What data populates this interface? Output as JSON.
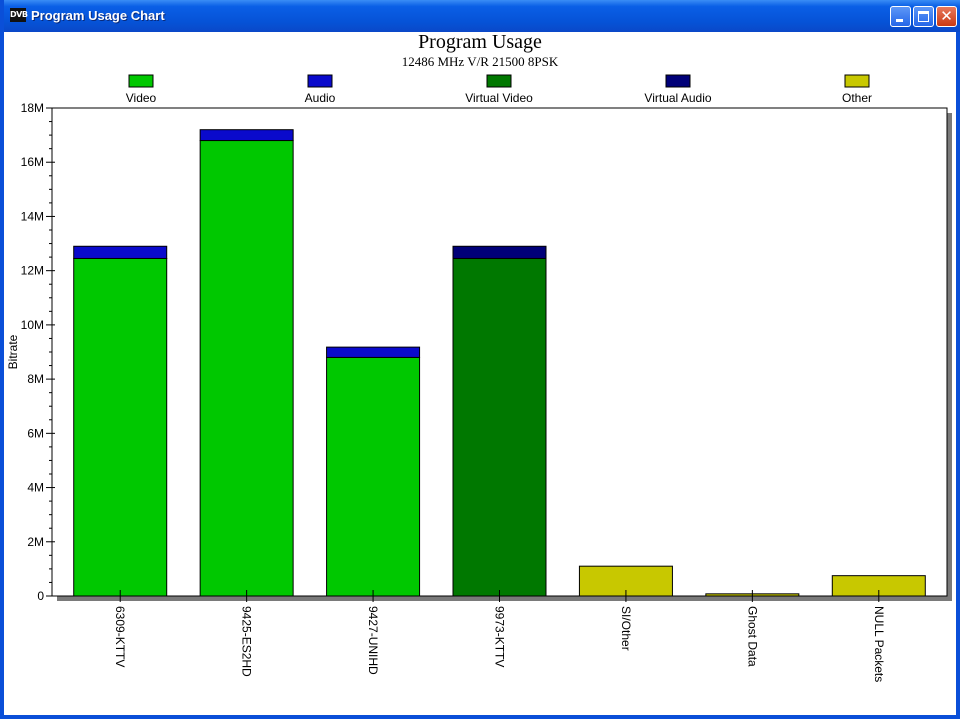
{
  "window": {
    "title": "Program Usage Chart",
    "icon_label": "DVB"
  },
  "chart_data": {
    "type": "bar",
    "stacked": true,
    "title": "Program Usage",
    "subtitle": "12486 MHz V/R 21500 8PSK",
    "xlabel": "",
    "ylabel": "Bitrate",
    "ylim": [
      0,
      18000000
    ],
    "yticks": [
      0,
      2000000,
      4000000,
      6000000,
      8000000,
      10000000,
      12000000,
      14000000,
      16000000,
      18000000
    ],
    "ytick_labels": [
      "0",
      "2M",
      "4M",
      "6M",
      "8M",
      "10M",
      "12M",
      "14M",
      "16M",
      "18M"
    ],
    "grid": false,
    "legend_position": "top",
    "categories": [
      "6309-KTTV",
      "9425-ES2HD",
      "9427-UNIHD",
      "9973-KTTV",
      "SI/Other",
      "Ghost Data",
      "NULL Packets"
    ],
    "series": [
      {
        "name": "Video",
        "color": "#00c800",
        "values": [
          12450000,
          16800000,
          8800000,
          0,
          0,
          0,
          0
        ]
      },
      {
        "name": "Audio",
        "color": "#0a0acc",
        "values": [
          450000,
          400000,
          380000,
          0,
          0,
          0,
          0
        ]
      },
      {
        "name": "Virtual Video",
        "color": "#007800",
        "values": [
          0,
          0,
          0,
          12450000,
          0,
          0,
          0
        ]
      },
      {
        "name": "Virtual Audio",
        "color": "#000078",
        "values": [
          0,
          0,
          0,
          450000,
          0,
          0,
          0
        ]
      },
      {
        "name": "Other",
        "color": "#c8c800",
        "values": [
          0,
          0,
          0,
          0,
          1100000,
          80000,
          750000
        ]
      }
    ]
  }
}
